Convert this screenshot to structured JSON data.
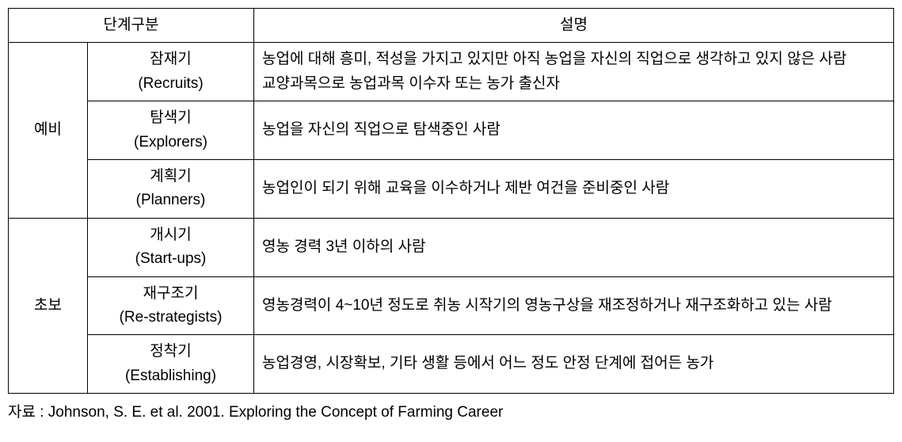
{
  "table": {
    "headers": {
      "stage_division": "단계구분",
      "description": "설명"
    },
    "categories": [
      {
        "name": "예비",
        "stages": [
          {
            "name_ko": "잠재기",
            "name_en": "(Recruits)",
            "description": "농업에 대해 흥미, 적성을 가지고 있지만 아직 농업을 자신의 직업으로 생각하고 있지 않은 사람\n교양과목으로 농업과목 이수자 또는 농가 출신자"
          },
          {
            "name_ko": "탐색기",
            "name_en": "(Explorers)",
            "description": "농업을 자신의 직업으로 탐색중인 사람"
          },
          {
            "name_ko": "계획기",
            "name_en": "(Planners)",
            "description": "농업인이 되기 위해 교육을 이수하거나 제반 여건을 준비중인 사람"
          }
        ]
      },
      {
        "name": "초보",
        "stages": [
          {
            "name_ko": "개시기",
            "name_en": "(Start-ups)",
            "description": "영농 경력 3년 이하의 사람"
          },
          {
            "name_ko": "재구조기",
            "name_en": "(Re-strategists)",
            "description": "영농경력이 4~10년 정도로 취농 시작기의 영농구상을 재조정하거나 재구조화하고 있는 사람"
          },
          {
            "name_ko": "정착기",
            "name_en": "(Establishing)",
            "description": "농업경영, 시장확보, 기타 생활 등에서 어느 정도 안정 단계에 접어든 농가"
          }
        ]
      }
    ]
  },
  "source": "자료 : Johnson, S. E. et al. 2001. Exploring the Concept of Farming Career",
  "styling": {
    "border_color": "#000000",
    "background_color": "#ffffff",
    "text_color": "#000000",
    "font_size": 19,
    "font_family": "Malgun Gothic",
    "column_widths": {
      "category": 100,
      "stage": 210
    }
  }
}
